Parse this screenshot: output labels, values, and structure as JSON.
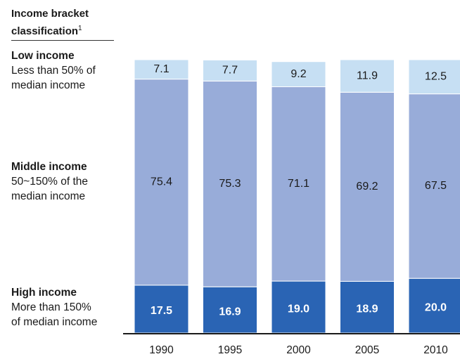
{
  "legend": {
    "title": "Income bracket classification",
    "title_main": "Income bracket",
    "title_line2": "classification",
    "footnote_marker": "1",
    "low": {
      "name": "Low income",
      "desc1": "Less than 50% of",
      "desc2": "median income"
    },
    "middle": {
      "name": "Middle income",
      "desc1": "50~150% of the",
      "desc2": "median income"
    },
    "high": {
      "name": "High income",
      "desc1": "More than 150%",
      "desc2": "of median income"
    }
  },
  "colors": {
    "low": "#c6dff3",
    "middle": "#98acd9",
    "high": "#2a64b4",
    "low_text": "#1a1a1a",
    "middle_text": "#1a1a1a",
    "high_text": "#ffffff"
  },
  "chart_data": {
    "type": "bar",
    "stacked": true,
    "categories": [
      "1990",
      "1995",
      "2000",
      "2005",
      "2010"
    ],
    "series": [
      {
        "name": "High income",
        "values": [
          17.5,
          16.9,
          19.0,
          18.9,
          20.0
        ],
        "labels": [
          "17.5",
          "16.9",
          "19.0",
          "18.9",
          "20.0"
        ]
      },
      {
        "name": "Middle income",
        "values": [
          75.4,
          75.3,
          71.1,
          69.2,
          67.5
        ],
        "labels": [
          "75.4",
          "75.3",
          "71.1",
          "69.2",
          "67.5"
        ]
      },
      {
        "name": "Low income",
        "values": [
          7.1,
          7.7,
          9.2,
          11.9,
          12.5
        ],
        "labels": [
          "7.1",
          "7.7",
          "9.2",
          "11.9",
          "12.5"
        ]
      }
    ],
    "ylim": [
      0,
      100
    ],
    "grid": false
  }
}
